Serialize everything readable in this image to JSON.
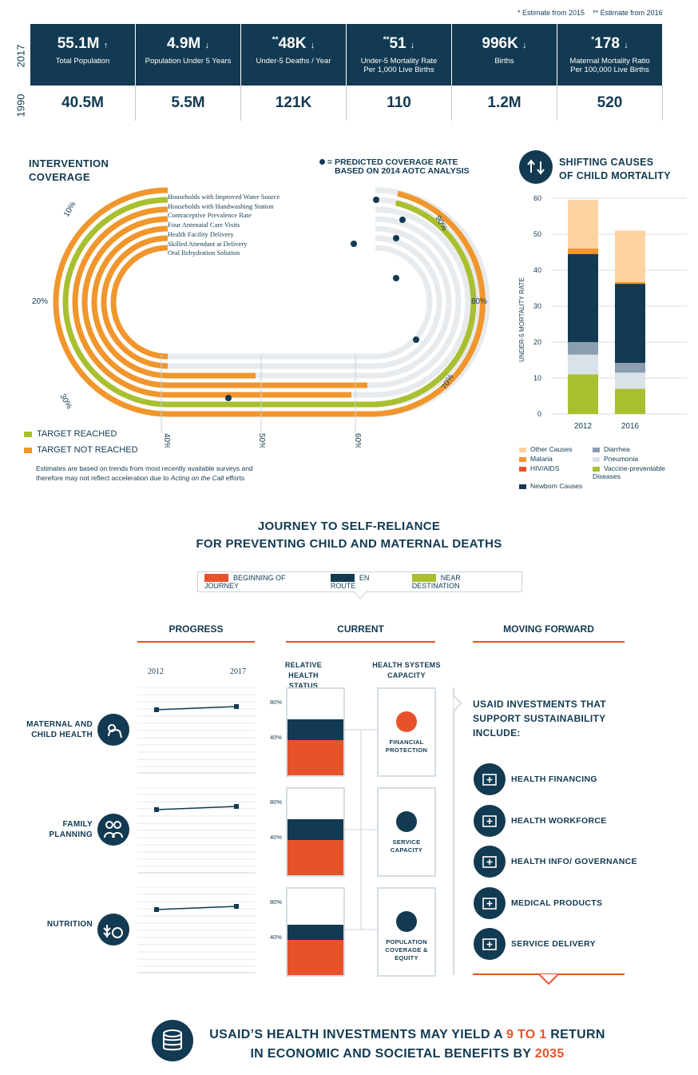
{
  "footnotes": {
    "a": "* Estimate from 2015",
    "b": "** Estimate from 2016"
  },
  "years": {
    "recent": "2017",
    "past": "1990"
  },
  "stats": [
    {
      "value": "55.1M",
      "prefix": "",
      "arrow": "↑",
      "label": "Total Population",
      "label2": "",
      "past": "40.5M"
    },
    {
      "value": "4.9M",
      "prefix": "",
      "arrow": "↓",
      "label": "Population Under 5 Years",
      "label2": "",
      "past": "5.5M"
    },
    {
      "value": "48K",
      "prefix": "**",
      "arrow": "↓",
      "label": "Under-5 Deaths / Year",
      "label2": "",
      "past": "121K"
    },
    {
      "value": "51",
      "prefix": "**",
      "arrow": "↓",
      "label": "Under-5 Mortality Rate",
      "label2": "Per 1,000 Live Births",
      "past": "110"
    },
    {
      "value": "996K",
      "prefix": "",
      "arrow": "↓",
      "label": "Births",
      "label2": "",
      "past": "1.2M"
    },
    {
      "value": "178",
      "prefix": "*",
      "arrow": "↓",
      "label": "Maternal Mortality Ratio",
      "label2": "Per 100,000 Live Births",
      "past": "520"
    }
  ],
  "coverage": {
    "title1": "INTERVENTION",
    "title2": "COVERAGE",
    "predicted1": "= PREDICTED COVERAGE RATE",
    "predicted2": "BASED ON 2014 AOTC ANALYSIS",
    "items": [
      "Households with Improved Water Source",
      "Households with Handwashing Station",
      "Contraceptive Prevalence Rate",
      "Four Antenatal Care Visits",
      "Health Facility Delivery",
      "Skilled Attendant at Delivery",
      "Oral Rehydration Solution"
    ],
    "ticks": [
      "10%",
      "20%",
      "30%",
      "40%",
      "50%",
      "60%",
      "70%",
      "80%",
      "90%"
    ],
    "legend_reached": "TARGET REACHED",
    "legend_not": "TARGET NOT REACHED",
    "note1": "Estimates are based on trends from most recently available surveys and",
    "note2a": "therefore may not reflect acceleration due to ",
    "note2b": "Acting on the Call",
    "note2c": " efforts",
    "colors": {
      "reached": "#a9bf2f",
      "not": "#f0962c",
      "track": "#e7ebee",
      "dot": "#123a52"
    }
  },
  "chart_data": {
    "type": "bar",
    "title": "SHIFTING CAUSES OF CHILD MORTALITY",
    "ylabel": "UNDER-5 MORTALITY RATE",
    "ylim": [
      0,
      60
    ],
    "yticks": [
      "0",
      "10",
      "20",
      "30",
      "40",
      "50",
      "60"
    ],
    "categories": [
      "2012",
      "2016"
    ],
    "stacked": true,
    "series": [
      {
        "name": "Vaccine-preventable Diseases",
        "color": "#a9bf2f",
        "values": [
          11,
          7
        ]
      },
      {
        "name": "Pneumonia",
        "color": "#d9e2e8",
        "values": [
          5.5,
          4.5
        ]
      },
      {
        "name": "Diarrhea",
        "color": "#8b9db0",
        "values": [
          3.5,
          2.7
        ]
      },
      {
        "name": "Newborn Causes",
        "color": "#123a52",
        "values": [
          24.5,
          22
        ]
      },
      {
        "name": "HIV/AIDS",
        "color": "#e8522a",
        "values": [
          0,
          0
        ]
      },
      {
        "name": "Malaria",
        "color": "#f0962c",
        "values": [
          1.5,
          0.5
        ]
      },
      {
        "name": "Other Causes",
        "color": "#fdd3a2",
        "values": [
          13.5,
          14.3
        ]
      }
    ],
    "legend": [
      {
        "name": "Other Causes",
        "color": "#fdd3a2"
      },
      {
        "name": "Diarrhea",
        "color": "#8b9db0"
      },
      {
        "name": "Malaria",
        "color": "#f0962c"
      },
      {
        "name": "Pneumonia",
        "color": "#d9e2e8"
      },
      {
        "name": "HIV/AIDS",
        "color": "#e8522a"
      },
      {
        "name": "Vaccine-preventable Diseases",
        "color": "#a9bf2f"
      },
      {
        "name": "Newborn Causes",
        "color": "#123a52"
      }
    ]
  },
  "journey": {
    "title1": "JOURNEY TO SELF-RELIANCE",
    "title2": "FOR PREVENTING CHILD AND MATERNAL DEATHS",
    "legend": [
      {
        "name": "BEGINNING OF JOURNEY",
        "color": "#e8522a"
      },
      {
        "name": "EN ROUTE",
        "color": "#123a52"
      },
      {
        "name": "NEAR DESTINATION",
        "color": "#a9bf2f"
      }
    ],
    "col_progress": "PROGRESS",
    "col_current": "CURRENT",
    "col_forward": "MOVING FORWARD",
    "year_start": "2012",
    "year_end": "2017",
    "rel_status1": "RELATIVE HEALTH",
    "rel_status2": "STATUS",
    "sys_cap1": "HEALTH SYSTEMS",
    "sys_cap2": "CAPACITY",
    "pct80": "80%",
    "pct40": "40%",
    "rows": [
      {
        "label1": "MATERNAL AND",
        "label2": "CHILD HEALTH",
        "sys1": "FINANCIAL",
        "sys2": "PROTECTION",
        "sys3": "",
        "sys_color": "#e8522a",
        "status_orange": 0.4,
        "status_navy": 0.24
      },
      {
        "label1": "FAMILY",
        "label2": "PLANNING",
        "sys1": "SERVICE",
        "sys2": "CAPACITY",
        "sys3": "",
        "sys_color": "#123a52",
        "status_orange": 0.4,
        "status_navy": 0.24
      },
      {
        "label1": "",
        "label2": "NUTRITION",
        "sys1": "POPULATION",
        "sys2": "COVERAGE &",
        "sys3": "EQUITY",
        "sys_color": "#123a52",
        "status_orange": 0.4,
        "status_navy": 0.17
      }
    ],
    "invest1": "USAID INVESTMENTS THAT",
    "invest2": "SUPPORT SUSTAINABILITY",
    "invest3": "INCLUDE:",
    "investments": [
      "HEALTH FINANCING",
      "HEALTH WORKFORCE",
      "HEALTH INFO/ GOVERNANCE",
      "MEDICAL PRODUCTS",
      "SERVICE DELIVERY"
    ]
  },
  "bottom": {
    "line1a": "USAID’S HEALTH INVESTMENTS MAY YIELD A ",
    "line1b": "9 TO 1",
    "line1c": " RETURN",
    "line2a": "IN ECONOMIC AND SOCIETAL BENEFITS BY ",
    "line2b": "2035"
  }
}
